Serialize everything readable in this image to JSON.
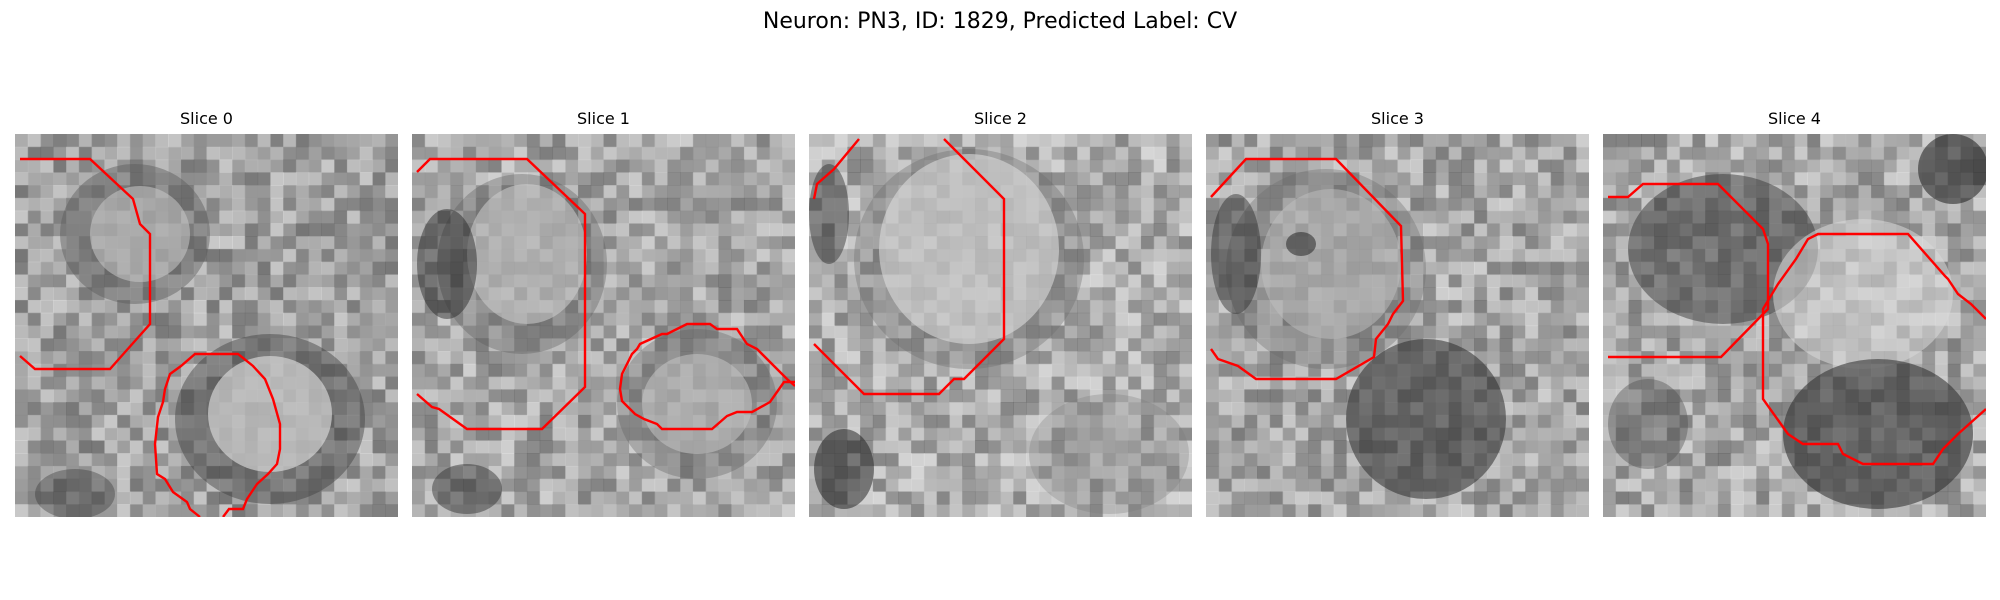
{
  "figure": {
    "title": "Neuron: PN3, ID: 1829, Predicted Label: CV"
  },
  "colors": {
    "contour": "#ff0000",
    "background": "#ffffff"
  },
  "slices": [
    {
      "label": "Slice 0"
    },
    {
      "label": "Slice 1"
    },
    {
      "label": "Slice 2"
    },
    {
      "label": "Slice 3"
    },
    {
      "label": "Slice 4"
    }
  ]
}
